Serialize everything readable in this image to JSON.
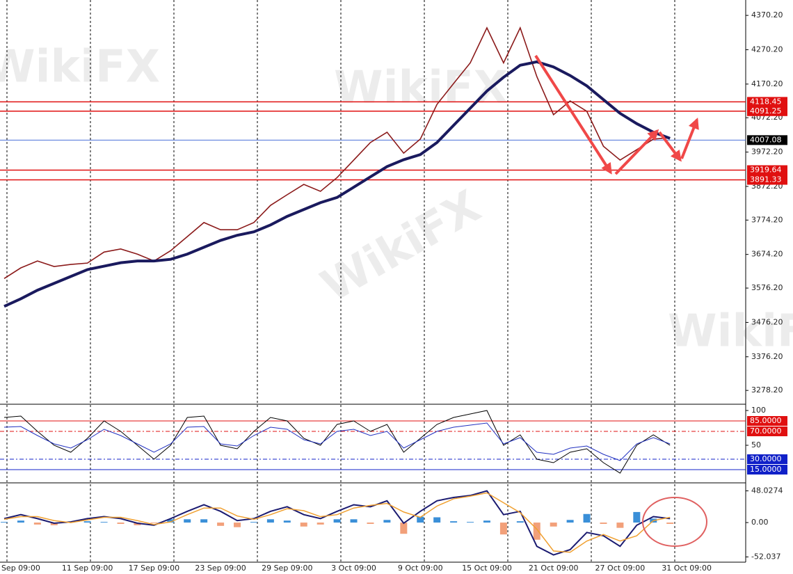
{
  "watermark": "WikiFX",
  "chart_data": [
    {
      "type": "line",
      "categories": [
        null,
        "Sep 09:00",
        null,
        null,
        null,
        "11 Sep 09:00",
        null,
        null,
        null,
        "17 Sep 09:00",
        null,
        null,
        null,
        "23 Sep 09:00",
        null,
        null,
        null,
        "29 Sep 09:00",
        null,
        null,
        null,
        "3 Oct 09:00",
        null,
        null,
        null,
        "9 Oct 09:00",
        null,
        null,
        null,
        "15 Oct 09:00",
        null,
        null,
        null,
        "21 Oct 09:00",
        null,
        null,
        null,
        "27 Oct 09:00",
        null,
        null,
        null,
        "31 Oct 09:00"
      ],
      "series": [
        {
          "color": "#8b1a1a",
          "width": 1.6,
          "values": [
            3604,
            3635,
            3655,
            3639,
            3645,
            3649,
            3681,
            3690,
            3675,
            3655,
            3685,
            3726,
            3767,
            3746,
            3746,
            3767,
            3817,
            3848,
            3878,
            3858,
            3898,
            3949,
            4000,
            4030,
            3969,
            4010,
            4111,
            4172,
            4232,
            4334,
            4232,
            4334,
            4192,
            4081,
            4121,
            4091,
            3989,
            3949,
            3979,
            4010,
            4014,
            null
          ]
        },
        {
          "color": "#1a1a5e",
          "width": 4,
          "values": [
            3523,
            3545,
            3570,
            3590,
            3610,
            3630,
            3640,
            3650,
            3655,
            3655,
            3660,
            3675,
            3695,
            3715,
            3730,
            3740,
            3760,
            3785,
            3805,
            3825,
            3840,
            3870,
            3900,
            3930,
            3950,
            3965,
            4000,
            4050,
            4100,
            4150,
            4190,
            4225,
            4235,
            4220,
            4195,
            4165,
            4125,
            4085,
            4055,
            4030,
            4012,
            null
          ]
        }
      ],
      "ylim": [
        3240,
        4415
      ],
      "yticks": [
        {
          "value": 4370.2,
          "label": "4370.20"
        },
        {
          "value": 4270.2,
          "label": "4270.20"
        },
        {
          "value": 4170.2,
          "label": "4170.20"
        },
        {
          "value": 4072.2,
          "label": "4072.20"
        },
        {
          "value": 3972.2,
          "label": "3972.20"
        },
        {
          "value": 3872.2,
          "label": "3872.20"
        },
        {
          "value": 3774.2,
          "label": "3774.20"
        },
        {
          "value": 3674.2,
          "label": "3674.20"
        },
        {
          "value": 3576.2,
          "label": "3576.20"
        },
        {
          "value": 3476.2,
          "label": "3476.20"
        },
        {
          "value": 3376.2,
          "label": "3376.20"
        },
        {
          "value": 3278.2,
          "label": "3278.20"
        }
      ],
      "levels": [
        {
          "value": 4118.45,
          "color": "#e01010"
        },
        {
          "value": 4091.25,
          "color": "#e01010"
        },
        {
          "value": 3919.64,
          "color": "#e01010"
        },
        {
          "value": 3891.33,
          "color": "#e01010"
        },
        {
          "value": 4007.08,
          "color": "#000000",
          "line_color": "#4a6fd8"
        }
      ]
    },
    {
      "type": "line",
      "series": [
        {
          "color": "#000000",
          "width": 1,
          "values": [
            90,
            92,
            70,
            50,
            40,
            60,
            85,
            70,
            50,
            30,
            50,
            90,
            92,
            50,
            45,
            70,
            90,
            85,
            60,
            50,
            80,
            85,
            70,
            80,
            40,
            60,
            80,
            90,
            95,
            100,
            50,
            65,
            30,
            25,
            40,
            45,
            25,
            10,
            50,
            65,
            50,
            null
          ]
        },
        {
          "color": "#2030c0",
          "width": 1,
          "values": [
            76,
            77,
            64,
            52,
            46,
            58,
            73,
            64,
            52,
            40,
            52,
            76,
            77,
            52,
            49,
            64,
            76,
            73,
            58,
            52,
            70,
            73,
            64,
            70,
            46,
            58,
            70,
            76,
            79,
            82,
            52,
            61,
            40,
            37,
            46,
            49,
            37,
            28,
            52,
            61,
            52,
            null
          ]
        }
      ],
      "ylim": [
        0,
        108
      ],
      "yticks": [
        100,
        50
      ],
      "levels": [
        {
          "value": 85,
          "label": "85.0000",
          "color": "#e01010"
        },
        {
          "value": 70,
          "label": "70.0000",
          "color": "#e01010"
        },
        {
          "value": 30,
          "label": "30.0000",
          "color": "#1020c8"
        },
        {
          "value": 15,
          "label": "15.0000",
          "color": "#1020c8"
        }
      ]
    },
    {
      "type": "line",
      "series": [
        {
          "type": "bar",
          "color": "#3a8fd8",
          "negative_color": "#f2a07a",
          "values": [
            1,
            3,
            -3,
            -4,
            1,
            2,
            1,
            -2,
            -4,
            -1,
            5,
            5,
            5,
            -5,
            -7,
            1,
            5,
            3,
            -6,
            -3,
            5,
            5,
            -2,
            4,
            -17,
            9,
            8,
            2,
            1,
            3,
            -18,
            2,
            -26,
            -6,
            4,
            13,
            -2,
            -8,
            16,
            6,
            -2,
            null
          ]
        },
        {
          "color": "#1a1a70",
          "width": 2,
          "values": [
            6,
            12,
            6,
            -1,
            1,
            6,
            9,
            6,
            -1,
            -4,
            6,
            17,
            27,
            17,
            3,
            6,
            17,
            24,
            12,
            6,
            17,
            27,
            24,
            33,
            -1,
            17,
            33,
            38,
            41,
            48,
            12,
            17,
            -36,
            -49,
            -41,
            -15,
            -20,
            -36,
            -4,
            9,
            6,
            null
          ]
        },
        {
          "color": "#f0a030",
          "width": 1.5,
          "values": [
            5,
            9,
            9,
            3,
            0,
            4,
            8,
            8,
            3,
            -3,
            1,
            12,
            22,
            22,
            10,
            5,
            12,
            21,
            18,
            9,
            12,
            22,
            26,
            29,
            16,
            8,
            25,
            36,
            40,
            45,
            30,
            15,
            -10,
            -43,
            -45,
            -28,
            -18,
            -28,
            -20,
            3,
            8,
            null
          ]
        }
      ],
      "ylim": [
        -60,
        57
      ],
      "yticks": [
        48.0274,
        {
          "value": 0,
          "label": "0.00"
        },
        -52.037
      ]
    }
  ]
}
